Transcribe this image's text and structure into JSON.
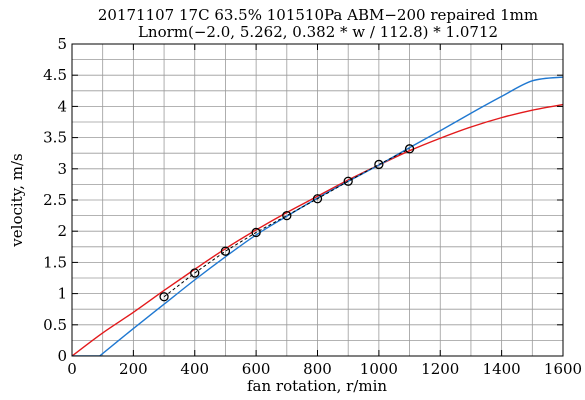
{
  "chart_data": {
    "type": "line",
    "title": "20171107 17C 63.5% 101510Pa ABM−200 repaired 1mm",
    "subtitle": "Lnorm(−2.0, 5.262, 0.382 * w / 112.8) * 1.0712",
    "xlabel": "fan rotation, r/min",
    "ylabel": "velocity, m/s",
    "xlim": [
      0,
      1600
    ],
    "ylim": [
      0,
      5
    ],
    "x_ticks": [
      0,
      200,
      400,
      600,
      800,
      1000,
      1200,
      1400,
      1600
    ],
    "x_tick_labels": [
      "0",
      "200",
      "400",
      "600",
      "800",
      "1000",
      "1200",
      "1400",
      "1600"
    ],
    "y_ticks": [
      0,
      0.5,
      1,
      1.5,
      2,
      2.5,
      3,
      3.5,
      4,
      4.5,
      5
    ],
    "y_tick_labels": [
      "0",
      "0.5",
      "1",
      "1.5",
      "2",
      "2.5",
      "3",
      "3.5",
      "4",
      "4.5",
      "5"
    ],
    "grid": true,
    "x_minor_step": 100,
    "y_minor_step": 0.25,
    "series": [
      {
        "style": "markers-dashed",
        "color": "#000000",
        "x": [
          300,
          400,
          500,
          600,
          700,
          800,
          900,
          1000,
          1100
        ],
        "y": [
          0.95,
          1.33,
          1.68,
          1.98,
          2.25,
          2.52,
          2.8,
          3.07,
          3.32
        ]
      },
      {
        "style": "line",
        "color": "#e31a1c",
        "x": [
          0,
          100,
          200,
          300,
          400,
          500,
          600,
          700,
          800,
          900,
          1000,
          1100,
          1200,
          1300,
          1400,
          1500,
          1600
        ],
        "y": [
          0.0,
          0.37,
          0.7,
          1.05,
          1.39,
          1.72,
          2.02,
          2.3,
          2.56,
          2.82,
          3.06,
          3.29,
          3.49,
          3.67,
          3.82,
          3.94,
          4.03
        ]
      },
      {
        "style": "line",
        "color": "#1f78d1",
        "x": [
          0,
          90,
          200,
          300,
          400,
          500,
          600,
          700,
          800,
          900,
          1000,
          1100,
          1200,
          1300,
          1400,
          1500,
          1600
        ],
        "y": [
          0.0,
          0.0,
          0.44,
          0.83,
          1.22,
          1.59,
          1.94,
          2.24,
          2.53,
          2.8,
          3.06,
          3.34,
          3.61,
          3.89,
          4.16,
          4.41,
          4.47
        ]
      }
    ]
  }
}
